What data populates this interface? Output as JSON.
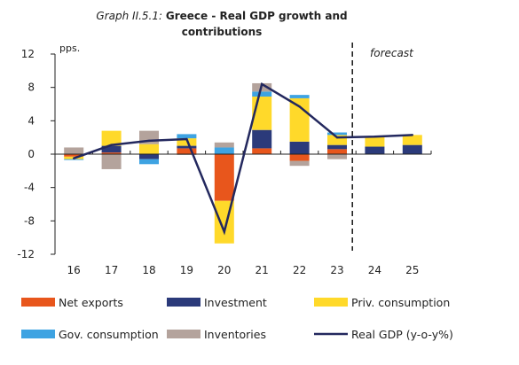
{
  "title": {
    "prefix": "Graph II.5.1: ",
    "bold_line1": "Greece - Real GDP growth and",
    "bold_line2": "contributions"
  },
  "chart_data": {
    "type": "bar",
    "subtype": "stacked bar with line overlay",
    "unit_label": "pps.",
    "annotation": "forecast",
    "forecast_divider_between": [
      "23",
      "24"
    ],
    "categories": [
      "16",
      "17",
      "18",
      "19",
      "20",
      "21",
      "22",
      "23",
      "24",
      "25"
    ],
    "ylim": [
      -12,
      12
    ],
    "yticks": [
      12,
      8,
      4,
      0,
      -4,
      -8,
      -12
    ],
    "ytick_labels": [
      "12",
      "8",
      "4",
      "0",
      "-4",
      "-8",
      "-12"
    ],
    "grid": false,
    "legend_position": "bottom",
    "series": [
      {
        "name": "Net exports",
        "kind": "bar",
        "color": "#e8561c",
        "values": [
          -0.3,
          0.2,
          0.0,
          0.7,
          -5.6,
          0.7,
          -0.8,
          0.6,
          0.0,
          0.0
        ]
      },
      {
        "name": "Investment",
        "kind": "bar",
        "color": "#2b3a7a",
        "values": [
          0.0,
          0.8,
          -0.6,
          0.3,
          0.0,
          2.2,
          1.5,
          0.5,
          0.9,
          1.1
        ]
      },
      {
        "name": "Priv. consumption",
        "kind": "bar",
        "color": "#ffd92a",
        "values": [
          -0.3,
          1.8,
          1.2,
          0.9,
          -5.1,
          4.0,
          5.2,
          1.2,
          1.2,
          1.2
        ]
      },
      {
        "name": "Gov. consumption",
        "kind": "bar",
        "color": "#3ea3e2",
        "values": [
          -0.1,
          0.0,
          -0.6,
          0.5,
          0.8,
          0.6,
          0.4,
          0.3,
          0.0,
          0.0
        ]
      },
      {
        "name": "Inventories",
        "kind": "bar",
        "color": "#b4a39c",
        "values": [
          0.8,
          -1.8,
          1.6,
          -0.1,
          0.6,
          1.0,
          -0.6,
          -0.6,
          0.0,
          0.0
        ]
      },
      {
        "name": "Real GDP (y-o-y%)",
        "kind": "line",
        "color": "#23285e",
        "values": [
          -0.5,
          1.1,
          1.6,
          1.8,
          -9.3,
          8.4,
          5.7,
          2.0,
          2.1,
          2.3
        ]
      }
    ]
  }
}
